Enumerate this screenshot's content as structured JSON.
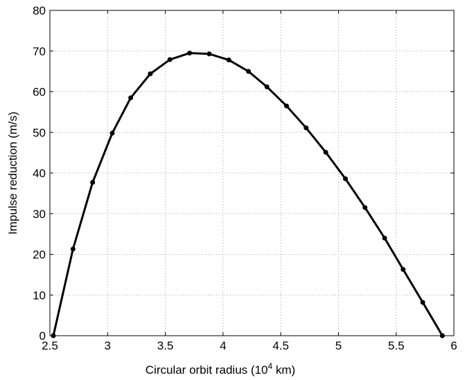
{
  "chart_data": {
    "type": "line",
    "x_label": {
      "before": "Circular orbit radius (10",
      "sup": "4",
      "after": " km)"
    },
    "y_label": "Impulse reduction (m/s)",
    "x": [
      2.53,
      2.7,
      2.87,
      3.04,
      3.2,
      3.37,
      3.54,
      3.71,
      3.88,
      4.05,
      4.22,
      4.38,
      4.55,
      4.72,
      4.89,
      5.06,
      5.23,
      5.4,
      5.56,
      5.73,
      5.9
    ],
    "series": [
      {
        "color": "#000000",
        "values": [
          0,
          21.3,
          37.7,
          49.8,
          58.5,
          64.4,
          67.9,
          69.5,
          69.3,
          67.8,
          65.0,
          61.2,
          56.5,
          51.1,
          45.1,
          38.6,
          31.5,
          24.0,
          16.3,
          8.2,
          0
        ]
      }
    ],
    "xlim": [
      2.5,
      6
    ],
    "xticks": [
      2.5,
      3,
      3.5,
      4,
      4.5,
      5,
      5.5,
      6
    ],
    "ylim": [
      0,
      80
    ],
    "yticks": [
      0,
      10,
      20,
      30,
      40,
      50,
      60,
      70,
      80
    ],
    "grid": true
  }
}
